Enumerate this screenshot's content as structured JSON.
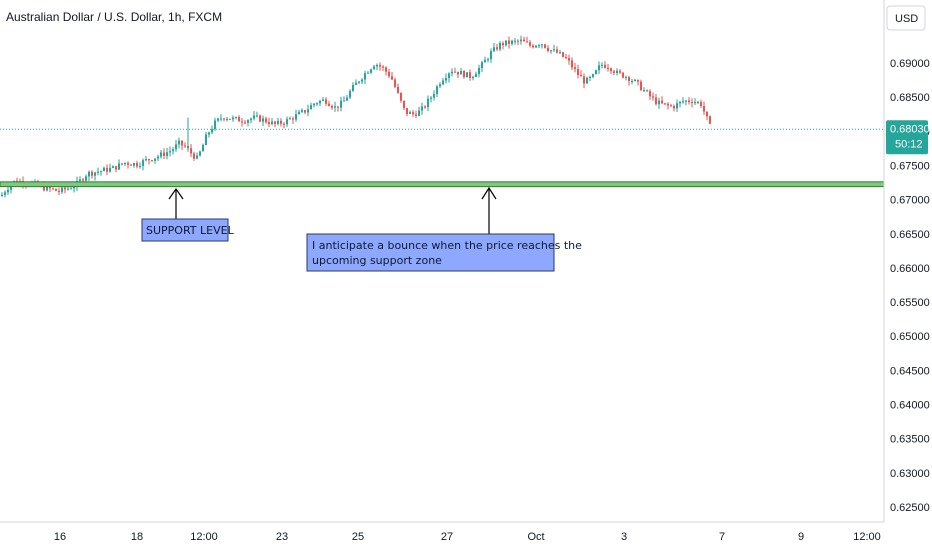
{
  "chart_data": {
    "type": "candlestick",
    "title": "Australian Dollar / U.S. Dollar, 1h, FXCM",
    "currency": "USD",
    "last_price": "0.68030",
    "countdown": "50:12",
    "ylim": [
      0.6225,
      0.6975
    ],
    "y_ticks": [
      "0.69000",
      "0.68500",
      "0.68000",
      "0.67500",
      "0.67000",
      "0.66500",
      "0.66000",
      "0.65500",
      "0.65000",
      "0.64500",
      "0.64000",
      "0.63500",
      "0.63000",
      "0.62500"
    ],
    "x_ticks": [
      "16",
      "18",
      "12:00",
      "23",
      "25",
      "27",
      "Oct",
      "3",
      "7",
      "9",
      "12:00"
    ],
    "support_zone": [
      0.6719,
      0.6726
    ],
    "price_path": [
      [
        0,
        0.6705
      ],
      [
        5,
        0.6715
      ],
      [
        12,
        0.6726
      ],
      [
        22,
        0.6727
      ],
      [
        32,
        0.6724
      ],
      [
        40,
        0.6718
      ],
      [
        48,
        0.6716
      ],
      [
        58,
        0.6712
      ],
      [
        66,
        0.6716
      ],
      [
        76,
        0.6723
      ],
      [
        86,
        0.6738
      ],
      [
        100,
        0.6742
      ],
      [
        112,
        0.6746
      ],
      [
        124,
        0.6754
      ],
      [
        136,
        0.6752
      ],
      [
        146,
        0.6758
      ],
      [
        158,
        0.6764
      ],
      [
        170,
        0.6772
      ],
      [
        178,
        0.6782
      ],
      [
        184,
        0.6778
      ],
      [
        190,
        0.6768
      ],
      [
        196,
        0.676
      ],
      [
        200,
        0.6772
      ],
      [
        206,
        0.6795
      ],
      [
        214,
        0.6812
      ],
      [
        222,
        0.6822
      ],
      [
        232,
        0.6818
      ],
      [
        242,
        0.6816
      ],
      [
        254,
        0.682
      ],
      [
        264,
        0.6816
      ],
      [
        274,
        0.681
      ],
      [
        284,
        0.6814
      ],
      [
        294,
        0.6822
      ],
      [
        304,
        0.683
      ],
      [
        314,
        0.6842
      ],
      [
        324,
        0.6846
      ],
      [
        334,
        0.6835
      ],
      [
        342,
        0.6842
      ],
      [
        350,
        0.686
      ],
      [
        358,
        0.6875
      ],
      [
        366,
        0.6888
      ],
      [
        374,
        0.69
      ],
      [
        382,
        0.6892
      ],
      [
        390,
        0.688
      ],
      [
        398,
        0.685
      ],
      [
        404,
        0.6828
      ],
      [
        412,
        0.6825
      ],
      [
        420,
        0.683
      ],
      [
        430,
        0.685
      ],
      [
        440,
        0.6875
      ],
      [
        450,
        0.689
      ],
      [
        460,
        0.6885
      ],
      [
        470,
        0.688
      ],
      [
        480,
        0.6895
      ],
      [
        490,
        0.6915
      ],
      [
        500,
        0.6928
      ],
      [
        510,
        0.693
      ],
      [
        520,
        0.6932
      ],
      [
        530,
        0.6925
      ],
      [
        540,
        0.693
      ],
      [
        548,
        0.692
      ],
      [
        556,
        0.6915
      ],
      [
        566,
        0.6905
      ],
      [
        576,
        0.6885
      ],
      [
        584,
        0.6872
      ],
      [
        592,
        0.688
      ],
      [
        600,
        0.6898
      ],
      [
        608,
        0.6895
      ],
      [
        616,
        0.6885
      ],
      [
        626,
        0.688
      ],
      [
        636,
        0.687
      ],
      [
        646,
        0.6855
      ],
      [
        656,
        0.6842
      ],
      [
        664,
        0.6838
      ],
      [
        672,
        0.6836
      ],
      [
        682,
        0.6844
      ],
      [
        692,
        0.6845
      ],
      [
        700,
        0.684
      ],
      [
        705,
        0.6822
      ],
      [
        710,
        0.6803
      ]
    ],
    "annotations": {
      "support_label": "SUPPORT LEVEL",
      "bounce_line1": "I anticipate a bounce when the price reaches the",
      "bounce_line2": "upcoming support zone"
    },
    "colors": {
      "up": "#26a69a",
      "down": "#ef5350",
      "zone_fill": "#7ecb7e",
      "zone_border": "#2e7d32",
      "annotation_bg": "#8fa8ff",
      "last_price": "#26a69a"
    }
  }
}
